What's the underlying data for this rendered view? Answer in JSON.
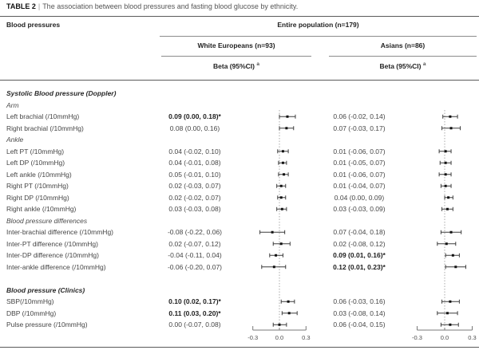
{
  "title": {
    "label": "TABLE 2",
    "separator": "|",
    "text": "The association between blood pressures and fasting blood glucose by ethnicity."
  },
  "header": {
    "row_label": "Blood pressures",
    "population": "Entire population (n=179)",
    "groups": [
      {
        "name": "White Europeans (n=93)",
        "beta": "Beta (95%CI)",
        "beta_sup": "a"
      },
      {
        "name": "Asians (n=86)",
        "beta": "Beta (95%CI)",
        "beta_sup": "a"
      }
    ]
  },
  "axis": {
    "ticks": [
      "-0.3",
      "0.0",
      "0.3"
    ],
    "min": -0.3,
    "max": 0.3
  },
  "rows": [
    {
      "type": "section",
      "label": "Systolic Blood pressure (Doppler)"
    },
    {
      "type": "subsection",
      "label": "Arm"
    },
    {
      "type": "data",
      "label": "Left brachial (/10mmHg)",
      "we": {
        "text": "0.09 (0.00, 0.18)*",
        "bold": true,
        "est": 0.09,
        "lo": 0.0,
        "hi": 0.18
      },
      "as": {
        "text": "0.06 (-0.02, 0.14)",
        "bold": false,
        "est": 0.06,
        "lo": -0.02,
        "hi": 0.14
      }
    },
    {
      "type": "data",
      "label": "Right brachial (/10mmHg)",
      "we": {
        "text": "0.08 (0.00, 0.16)",
        "bold": false,
        "est": 0.08,
        "lo": 0.0,
        "hi": 0.16
      },
      "as": {
        "text": "0.07 (-0.03, 0.17)",
        "bold": false,
        "est": 0.07,
        "lo": -0.03,
        "hi": 0.17
      }
    },
    {
      "type": "subsection",
      "label": "Ankle"
    },
    {
      "type": "data",
      "label": "Left PT (/10mmHg)",
      "we": {
        "text": "0.04 (-0.02, 0.10)",
        "bold": false,
        "est": 0.04,
        "lo": -0.02,
        "hi": 0.1
      },
      "as": {
        "text": "0.01 (-0.06, 0.07)",
        "bold": false,
        "est": 0.01,
        "lo": -0.06,
        "hi": 0.07
      }
    },
    {
      "type": "data",
      "label": "Left DP (/10mmHg)",
      "we": {
        "text": "0.04 (-0.01, 0.08)",
        "bold": false,
        "est": 0.04,
        "lo": -0.01,
        "hi": 0.08
      },
      "as": {
        "text": "0.01 (-0.05, 0.07)",
        "bold": false,
        "est": 0.01,
        "lo": -0.05,
        "hi": 0.07
      }
    },
    {
      "type": "data",
      "label": "Left ankle (/10mmHg)",
      "we": {
        "text": "0.05 (-0.01, 0.10)",
        "bold": false,
        "est": 0.05,
        "lo": -0.01,
        "hi": 0.1
      },
      "as": {
        "text": "0.01 (-0.06, 0.07)",
        "bold": false,
        "est": 0.01,
        "lo": -0.06,
        "hi": 0.07
      }
    },
    {
      "type": "data",
      "label": "Right PT (/10mmHg)",
      "we": {
        "text": "0.02 (-0.03, 0.07)",
        "bold": false,
        "est": 0.02,
        "lo": -0.03,
        "hi": 0.07
      },
      "as": {
        "text": "0.01 (-0.04, 0.07)",
        "bold": false,
        "est": 0.01,
        "lo": -0.04,
        "hi": 0.07
      }
    },
    {
      "type": "data",
      "label": "Right DP (/10mmHg)",
      "we": {
        "text": "0.02 (-0.02, 0.07)",
        "bold": false,
        "est": 0.02,
        "lo": -0.02,
        "hi": 0.07
      },
      "as": {
        "text": "0.04 (0.00, 0.09)",
        "bold": false,
        "est": 0.04,
        "lo": 0.0,
        "hi": 0.09
      }
    },
    {
      "type": "data",
      "label": "Right ankle (/10mmHg)",
      "we": {
        "text": "0.03 (-0.03, 0.08)",
        "bold": false,
        "est": 0.03,
        "lo": -0.03,
        "hi": 0.08
      },
      "as": {
        "text": "0.03 (-0.03, 0.09)",
        "bold": false,
        "est": 0.03,
        "lo": -0.03,
        "hi": 0.09
      }
    },
    {
      "type": "subsection",
      "label": "Blood pressure differences"
    },
    {
      "type": "data",
      "label": "Inter-brachial difference (/10mmHg)",
      "we": {
        "text": "-0.08 (-0.22, 0.06)",
        "bold": false,
        "est": -0.08,
        "lo": -0.22,
        "hi": 0.06
      },
      "as": {
        "text": "0.07 (-0.04, 0.18)",
        "bold": false,
        "est": 0.07,
        "lo": -0.04,
        "hi": 0.18
      }
    },
    {
      "type": "data",
      "label": "Inter-PT difference (/10mmHg)",
      "we": {
        "text": "0.02 (-0.07, 0.12)",
        "bold": false,
        "est": 0.02,
        "lo": -0.07,
        "hi": 0.12
      },
      "as": {
        "text": "0.02 (-0.08, 0.12)",
        "bold": false,
        "est": 0.02,
        "lo": -0.08,
        "hi": 0.12
      }
    },
    {
      "type": "data",
      "label": "Inter-DP difference (/10mmHg)",
      "we": {
        "text": "-0.04 (-0.11, 0.04)",
        "bold": false,
        "est": -0.04,
        "lo": -0.11,
        "hi": 0.04
      },
      "as": {
        "text": "0.09 (0.01, 0.16)*",
        "bold": true,
        "est": 0.09,
        "lo": 0.01,
        "hi": 0.16
      }
    },
    {
      "type": "data",
      "label": "Inter-ankle difference (/10mmHg)",
      "we": {
        "text": "-0.06 (-0.20, 0.07)",
        "bold": false,
        "est": -0.06,
        "lo": -0.2,
        "hi": 0.07
      },
      "as": {
        "text": "0.12 (0.01, 0.23)*",
        "bold": true,
        "est": 0.12,
        "lo": 0.01,
        "hi": 0.23
      }
    },
    {
      "type": "blank",
      "label": ""
    },
    {
      "type": "section",
      "label": "Blood pressure (Clinics)"
    },
    {
      "type": "data",
      "label": "SBP(/10mmHg)",
      "we": {
        "text": "0.10 (0.02, 0.17)*",
        "bold": true,
        "est": 0.1,
        "lo": 0.02,
        "hi": 0.17
      },
      "as": {
        "text": "0.06 (-0.03, 0.16)",
        "bold": false,
        "est": 0.06,
        "lo": -0.03,
        "hi": 0.16
      }
    },
    {
      "type": "data",
      "label": "DBP (/10mmHg)",
      "we": {
        "text": "0.11 (0.03, 0.20)*",
        "bold": true,
        "est": 0.11,
        "lo": 0.03,
        "hi": 0.2
      },
      "as": {
        "text": "0.03 (-0.08, 0.14)",
        "bold": false,
        "est": 0.03,
        "lo": -0.08,
        "hi": 0.14
      }
    },
    {
      "type": "data",
      "label": "Pulse pressure (/10mmHg)",
      "we": {
        "text": "0.00 (-0.07, 0.08)",
        "bold": false,
        "est": 0.0,
        "lo": -0.07,
        "hi": 0.08
      },
      "as": {
        "text": "0.06 (-0.04, 0.15)",
        "bold": false,
        "est": 0.06,
        "lo": -0.04,
        "hi": 0.15
      }
    }
  ],
  "chart_data": [
    {
      "type": "scatter",
      "variant": "forest-plot",
      "title": "White Europeans (n=93)",
      "xlabel": "Beta (95%CI)",
      "xlim": [
        -0.3,
        0.3
      ],
      "xticks": [
        -0.3,
        0.0,
        0.3
      ],
      "zero_reference_line": true,
      "categories": [
        "Left brachial",
        "Right brachial",
        "Left PT",
        "Left DP",
        "Left ankle",
        "Right PT",
        "Right DP",
        "Right ankle",
        "Inter-brachial difference",
        "Inter-PT difference",
        "Inter-DP difference",
        "Inter-ankle difference",
        "SBP",
        "DBP",
        "Pulse pressure"
      ],
      "series": [
        {
          "name": "beta",
          "values": [
            0.09,
            0.08,
            0.04,
            0.04,
            0.05,
            0.02,
            0.02,
            0.03,
            -0.08,
            0.02,
            -0.04,
            -0.06,
            0.1,
            0.11,
            0.0
          ]
        },
        {
          "name": "ci_low",
          "values": [
            0.0,
            0.0,
            -0.02,
            -0.01,
            -0.01,
            -0.03,
            -0.02,
            -0.03,
            -0.22,
            -0.07,
            -0.11,
            -0.2,
            0.02,
            0.03,
            -0.07
          ]
        },
        {
          "name": "ci_high",
          "values": [
            0.18,
            0.16,
            0.1,
            0.08,
            0.1,
            0.07,
            0.07,
            0.08,
            0.06,
            0.12,
            0.04,
            0.07,
            0.17,
            0.2,
            0.08
          ]
        }
      ]
    },
    {
      "type": "scatter",
      "variant": "forest-plot",
      "title": "Asians (n=86)",
      "xlabel": "Beta (95%CI)",
      "xlim": [
        -0.3,
        0.3
      ],
      "xticks": [
        -0.3,
        0.0,
        0.3
      ],
      "zero_reference_line": true,
      "categories": [
        "Left brachial",
        "Right brachial",
        "Left PT",
        "Left DP",
        "Left ankle",
        "Right PT",
        "Right DP",
        "Right ankle",
        "Inter-brachial difference",
        "Inter-PT difference",
        "Inter-DP difference",
        "Inter-ankle difference",
        "SBP",
        "DBP",
        "Pulse pressure"
      ],
      "series": [
        {
          "name": "beta",
          "values": [
            0.06,
            0.07,
            0.01,
            0.01,
            0.01,
            0.01,
            0.04,
            0.03,
            0.07,
            0.02,
            0.09,
            0.12,
            0.06,
            0.03,
            0.06
          ]
        },
        {
          "name": "ci_low",
          "values": [
            -0.02,
            -0.03,
            -0.06,
            -0.05,
            -0.06,
            -0.04,
            0.0,
            -0.03,
            -0.04,
            -0.08,
            0.01,
            0.01,
            -0.03,
            -0.08,
            -0.04
          ]
        },
        {
          "name": "ci_high",
          "values": [
            0.14,
            0.17,
            0.07,
            0.07,
            0.07,
            0.07,
            0.09,
            0.09,
            0.18,
            0.12,
            0.16,
            0.23,
            0.16,
            0.14,
            0.15
          ]
        }
      ]
    }
  ]
}
